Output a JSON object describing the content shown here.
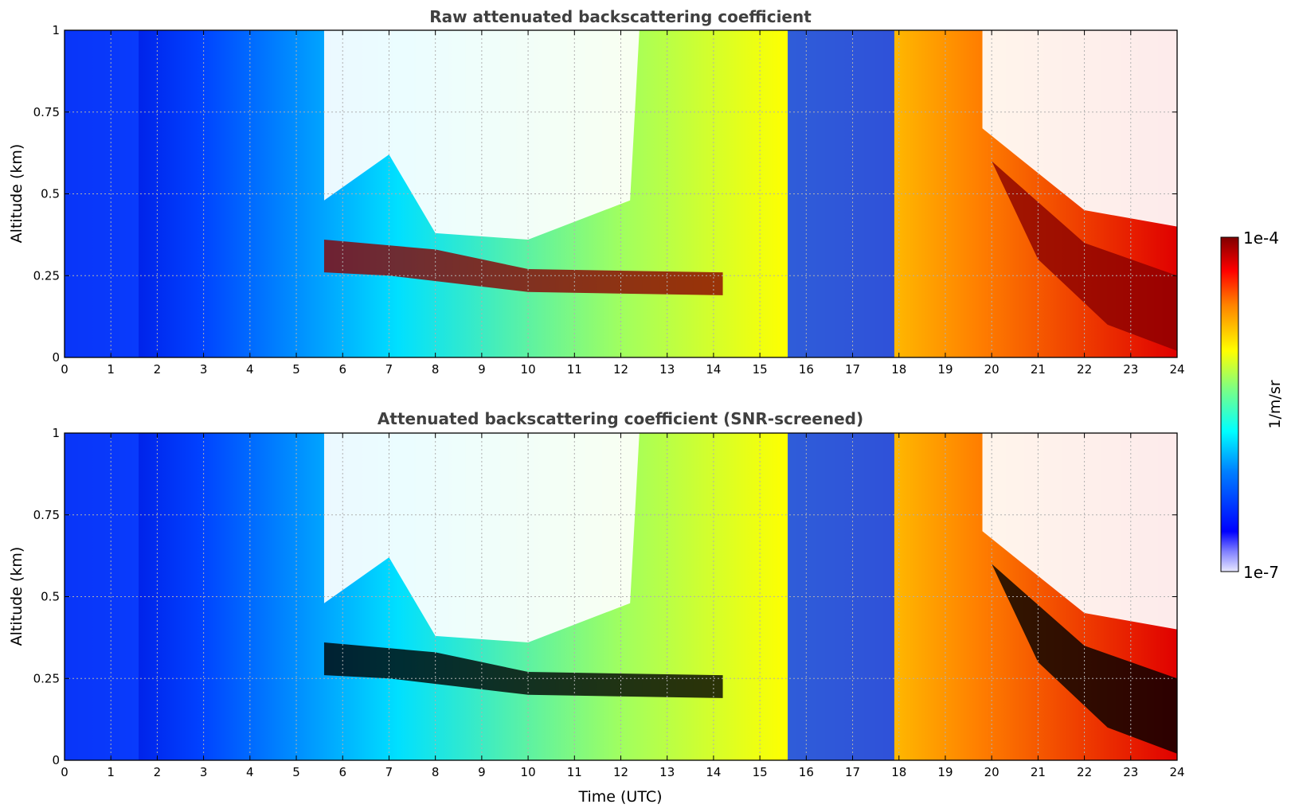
{
  "chart_data": [
    {
      "type": "heatmap",
      "title": "Raw attenuated backscattering coefficient",
      "ylabel": "Altitude (km)",
      "xlabel": "",
      "xlim": [
        0,
        24
      ],
      "ylim": [
        0,
        1
      ],
      "xticks": [
        "0",
        "1",
        "2",
        "3",
        "4",
        "5",
        "6",
        "7",
        "8",
        "9",
        "10",
        "11",
        "12",
        "13",
        "14",
        "15",
        "16",
        "17",
        "18",
        "19",
        "20",
        "21",
        "22",
        "23",
        "24"
      ],
      "yticks": [
        "0",
        "0.25",
        "0.5",
        "0.75",
        "1"
      ],
      "grid": true,
      "screened": false
    },
    {
      "type": "heatmap",
      "title": "Attenuated backscattering coefficient (SNR-screened)",
      "ylabel": "Altitude (km)",
      "xlabel": "Time (UTC)",
      "xlim": [
        0,
        24
      ],
      "ylim": [
        0,
        1
      ],
      "xticks": [
        "0",
        "1",
        "2",
        "3",
        "4",
        "5",
        "6",
        "7",
        "8",
        "9",
        "10",
        "11",
        "12",
        "13",
        "14",
        "15",
        "16",
        "17",
        "18",
        "19",
        "20",
        "21",
        "22",
        "23",
        "24"
      ],
      "yticks": [
        "0",
        "0.25",
        "0.5",
        "0.75",
        "1"
      ],
      "grid": true,
      "screened": true
    }
  ],
  "colorbar": {
    "label": "1/m/sr",
    "max_label": "1e-4",
    "min_label": "1e-7",
    "colormap": "jet"
  }
}
